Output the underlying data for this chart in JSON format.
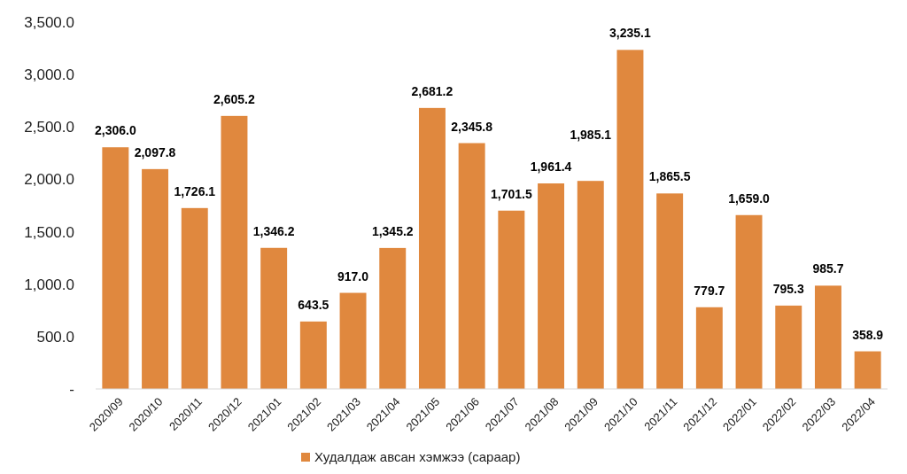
{
  "chart_data": {
    "type": "bar",
    "categories": [
      "2020/09",
      "2020/10",
      "2020/11",
      "2020/12",
      "2021/01",
      "2021/02",
      "2021/03",
      "2021/04",
      "2021/05",
      "2021/06",
      "2021/07",
      "2021/08",
      "2021/09",
      "2021/10",
      "2021/11",
      "2021/12",
      "2022/01",
      "2022/02",
      "2022/03",
      "2022/04"
    ],
    "series": [
      {
        "name": "Худалдаж авсан хэмжээ (сараар)",
        "color": "#e0883e",
        "values": [
          2306.0,
          2097.8,
          1726.1,
          2605.2,
          1346.2,
          643.5,
          917.0,
          1345.2,
          2681.2,
          2345.8,
          1701.5,
          1961.4,
          1985.1,
          3235.1,
          1865.5,
          779.7,
          1659.0,
          795.3,
          985.7,
          358.9
        ],
        "value_labels": [
          "2,306.0",
          "2,097.8",
          "1,726.1",
          "2,605.2",
          "1,346.2",
          "643.5",
          "917.0",
          "1,345.2",
          "2,681.2",
          "2,345.8",
          "1,701.5",
          "1,961.4",
          "1,985.1",
          "3,235.1",
          "1,865.5",
          "779.7",
          "1,659.0",
          "795.3",
          "985.7",
          "358.9"
        ]
      }
    ],
    "ylim": [
      0,
      3500
    ],
    "yticks": [
      {
        "value": 0,
        "label": "-"
      },
      {
        "value": 500,
        "label": "500.0"
      },
      {
        "value": 1000,
        "label": "1,000.0"
      },
      {
        "value": 1500,
        "label": "1,500.0"
      },
      {
        "value": 2000,
        "label": "2,000.0"
      },
      {
        "value": 2500,
        "label": "2,500.0"
      },
      {
        "value": 3000,
        "label": "3,000.0"
      },
      {
        "value": 3500,
        "label": "3,500.0"
      }
    ],
    "grid": false,
    "legend": "bottom"
  }
}
